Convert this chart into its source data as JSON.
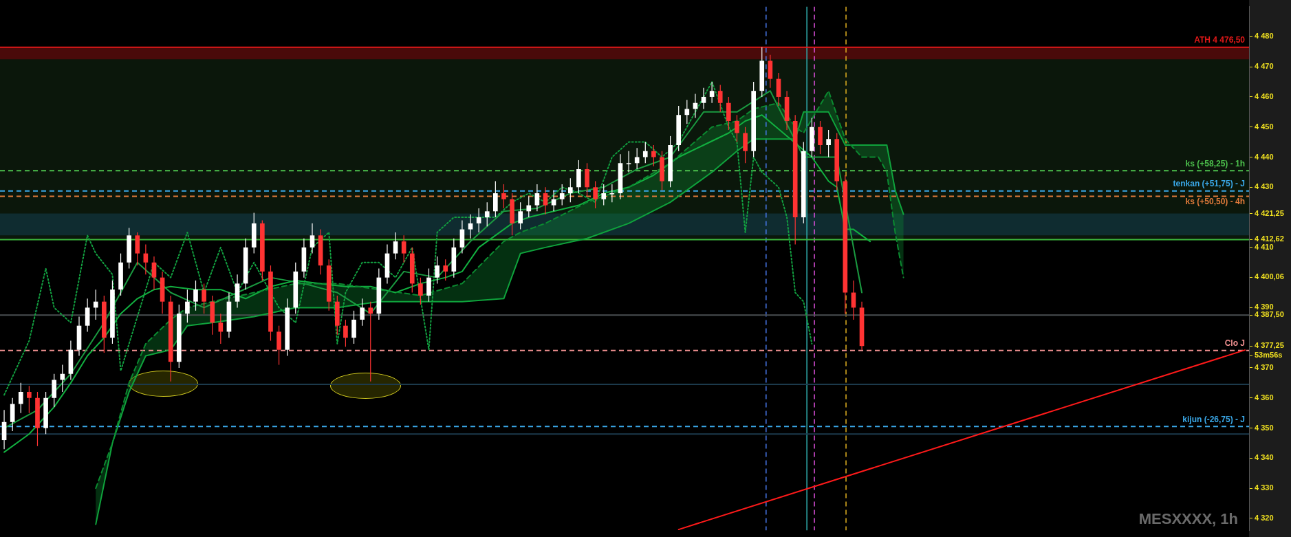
{
  "chart_data": {
    "type": "candlestick",
    "tick_labels": "y",
    "grid": false,
    "legend": false,
    "marker": "none",
    "categories": [
      null,
      null,
      null,
      null,
      null,
      null,
      null,
      null,
      null,
      null,
      null,
      null,
      null,
      null,
      null,
      null,
      null,
      null,
      null,
      null,
      null,
      null,
      null,
      null,
      null,
      null,
      null,
      null,
      null,
      null,
      null,
      null,
      null,
      null,
      null,
      null,
      null,
      null,
      null,
      null,
      null,
      null,
      null,
      null,
      null,
      null,
      null,
      null,
      null,
      null,
      null,
      null,
      null,
      null,
      null,
      null,
      null,
      null,
      null,
      null,
      null,
      null,
      null,
      null,
      null,
      null,
      null,
      null,
      null,
      null,
      null,
      null,
      null,
      null,
      null,
      null,
      null,
      null,
      null,
      null,
      null,
      null,
      null,
      null,
      null,
      null,
      null,
      null,
      null,
      null,
      null,
      null,
      null,
      null,
      null,
      null,
      null,
      null,
      null,
      null,
      null,
      null,
      null,
      null,
      null,
      null,
      null,
      null,
      null,
      null,
      null,
      null,
      null,
      null,
      null,
      null,
      null,
      null,
      null,
      null,
      null,
      null,
      null,
      null,
      null,
      null,
      null,
      null,
      null,
      null,
      null,
      null,
      null,
      null,
      null,
      null,
      null,
      null,
      null,
      null,
      null,
      null,
      null,
      null,
      null,
      null,
      null,
      null,
      null,
      null
    ],
    "ylim": [
      4316,
      4490
    ],
    "yticks": [
      {
        "value": 4320,
        "label": "4 320"
      },
      {
        "value": 4330,
        "label": "4 330"
      },
      {
        "value": 4340,
        "label": "4 340"
      },
      {
        "value": 4350,
        "label": "4 350"
      },
      {
        "value": 4360,
        "label": "4 360"
      },
      {
        "value": 4370,
        "label": "4 370"
      },
      {
        "value": 4374,
        "label": "53m56s"
      },
      {
        "value": 4377.25,
        "label": "4 377,25"
      },
      {
        "value": 4387.5,
        "label": "4 387,50"
      },
      {
        "value": 4390,
        "label": "4 390"
      },
      {
        "value": 4400.06,
        "label": "4 400,06"
      },
      {
        "value": 4410,
        "label": "4 410"
      },
      {
        "value": 4412.62,
        "label": "4 412,62"
      },
      {
        "value": 4421.25,
        "label": "4 421,25"
      },
      {
        "value": 4430,
        "label": "4 430"
      },
      {
        "value": 4440,
        "label": "4 440"
      },
      {
        "value": 4450,
        "label": "4 450"
      },
      {
        "value": 4460,
        "label": "4 460"
      },
      {
        "value": 4470,
        "label": "4 470"
      },
      {
        "value": 4480,
        "label": "4 480"
      }
    ],
    "series": [
      {
        "type": "line",
        "color": "#0b8a30",
        "line_style": "dashed",
        "values": [
          null,
          null,
          null,
          null,
          null,
          null,
          null,
          null,
          null,
          null,
          null,
          4330,
          null,
          4345,
          null,
          4365,
          null,
          4378,
          null,
          null,
          4386,
          null,
          4390,
          null,
          null,
          4392,
          null,
          null,
          null,
          null,
          4395,
          null,
          null,
          null,
          null,
          4398,
          null,
          null,
          null,
          null,
          4398,
          null,
          null,
          null,
          null,
          4396,
          null,
          null,
          null,
          null,
          4394,
          null,
          null,
          null,
          null,
          4398,
          null,
          null,
          null,
          null,
          4412,
          null,
          4415,
          null,
          null,
          4418,
          null,
          null,
          null,
          null,
          4425,
          null,
          null,
          null,
          null,
          4430,
          null,
          null,
          null,
          null,
          4438,
          null,
          null,
          null,
          null,
          4450,
          null,
          null,
          4452,
          null,
          4456,
          null,
          null,
          4458,
          null,
          4450,
          4448,
          null,
          null,
          4462,
          null,
          4446,
          null,
          4440,
          null,
          4440,
          4435,
          4415,
          4400,
          null,
          null,
          null,
          null,
          null,
          null,
          null,
          null,
          null,
          null,
          null,
          null,
          null,
          null,
          null,
          null,
          null,
          null,
          null,
          null,
          null,
          null,
          null,
          null,
          null,
          null,
          null,
          null,
          null,
          null,
          null,
          null,
          null,
          null,
          null,
          null,
          null,
          null,
          null,
          null,
          null
        ],
        "upper": [
          null,
          null,
          null,
          null,
          null,
          null,
          null,
          null,
          null,
          null,
          null,
          4330,
          null,
          4345,
          null,
          4365,
          null,
          4378,
          null,
          null,
          4386,
          null,
          4390,
          null,
          null,
          4392,
          null,
          null,
          null,
          null,
          4395,
          null,
          null,
          null,
          null,
          4398,
          null,
          null,
          null,
          null,
          4398,
          null,
          null,
          null,
          null,
          4396,
          null,
          null,
          null,
          null,
          4394,
          null,
          null,
          null,
          null,
          4398,
          null,
          null,
          null,
          null,
          4412,
          null,
          4415,
          null,
          null,
          4418,
          null,
          null,
          null,
          null,
          4425,
          null,
          null,
          null,
          null,
          4430,
          null,
          null,
          null,
          null,
          4438,
          null,
          null,
          null,
          null,
          4450,
          null,
          null,
          4452,
          null,
          4456,
          null,
          null,
          4458,
          null,
          4450,
          4448,
          null,
          null,
          4462,
          null,
          4446,
          null,
          4440,
          null,
          4440,
          4435,
          4415,
          4400,
          null,
          null,
          null,
          null,
          null,
          null,
          null,
          null,
          null,
          null,
          null,
          null,
          null,
          null,
          null,
          null,
          null,
          null,
          null,
          null,
          null,
          null,
          null,
          null,
          null,
          null,
          null,
          null,
          null,
          null,
          null,
          null,
          null,
          null,
          null,
          null,
          null,
          null,
          null,
          null,
          null
        ],
        "lower": [
          null,
          null,
          null,
          null,
          null,
          null,
          null,
          null,
          null,
          null,
          null,
          4318,
          null,
          4345,
          null,
          4362,
          null,
          4374,
          null,
          null,
          4376,
          null,
          4384,
          null,
          null,
          4385,
          null,
          null,
          null,
          null,
          4387,
          null,
          null,
          null,
          null,
          4390,
          null,
          null,
          null,
          null,
          4390,
          null,
          null,
          null,
          null,
          4392,
          null,
          null,
          null,
          null,
          4392,
          null,
          null,
          null,
          null,
          4392,
          null,
          null,
          null,
          null,
          4393,
          null,
          4408,
          null,
          null,
          4410,
          null,
          null,
          null,
          null,
          4413,
          null,
          null,
          null,
          null,
          4418,
          null,
          null,
          null,
          null,
          4425,
          null,
          null,
          null,
          null,
          4435,
          null,
          null,
          4442,
          null,
          4446,
          null,
          null,
          4446,
          null,
          4446,
          4455,
          null,
          null,
          4455,
          null,
          4444,
          null,
          4444,
          null,
          4444,
          4444,
          4429,
          4421,
          null,
          null,
          null,
          null,
          null,
          null,
          null,
          null,
          null,
          null,
          null,
          null,
          null,
          null,
          null,
          null,
          null,
          null,
          null,
          null,
          null,
          null,
          null,
          null,
          null,
          null,
          null,
          null,
          null,
          null,
          null,
          null,
          null,
          null,
          null,
          null,
          null,
          null,
          null,
          null,
          null
        ]
      },
      {
        "type": "line",
        "color": "#0fa33c",
        "values": [
          null,
          null,
          null,
          null,
          null,
          null,
          null,
          null,
          null,
          null,
          null,
          4318,
          null,
          4345,
          null,
          4362,
          null,
          4374,
          null,
          null,
          4376,
          null,
          4384,
          null,
          null,
          4385,
          null,
          null,
          null,
          null,
          4387,
          null,
          null,
          null,
          null,
          4390,
          null,
          null,
          null,
          null,
          4390,
          null,
          null,
          null,
          null,
          4392,
          null,
          null,
          null,
          null,
          4392,
          null,
          null,
          null,
          null,
          4392,
          null,
          null,
          null,
          null,
          4393,
          null,
          4408,
          null,
          null,
          4410,
          null,
          null,
          null,
          null,
          4413,
          null,
          null,
          null,
          null,
          4418,
          null,
          null,
          null,
          null,
          4425,
          null,
          null,
          null,
          null,
          4435,
          null,
          null,
          4442,
          null,
          4446,
          null,
          null,
          4446,
          null,
          4446,
          4455,
          null,
          null,
          4455,
          null,
          4444,
          null,
          4444,
          null,
          4444,
          4444,
          4429,
          4421,
          null,
          null,
          null,
          null,
          null,
          null,
          null,
          null,
          null,
          null,
          null,
          null,
          null,
          null,
          null,
          null,
          null,
          null,
          null,
          null,
          null,
          null,
          null,
          null,
          null,
          null,
          null,
          null,
          null,
          null,
          null,
          null,
          null,
          null,
          null,
          null,
          null,
          null,
          null,
          null,
          null
        ]
      },
      {
        "type": "line",
        "color": "#12b040",
        "values": [
          4342,
          null,
          null,
          4348,
          null,
          null,
          4357,
          null,
          4365,
          null,
          4374,
          null,
          4380,
          null,
          4388,
          null,
          4393,
          null,
          4396,
          null,
          4397,
          null,
          null,
          4396,
          null,
          null,
          4396,
          null,
          null,
          4393,
          null,
          null,
          4397,
          null,
          null,
          4399,
          null,
          null,
          4398,
          null,
          null,
          4397,
          null,
          null,
          4397,
          null,
          null,
          4395,
          null,
          null,
          4398,
          null,
          null,
          4400,
          null,
          4402,
          null,
          4410,
          null,
          4414,
          null,
          4418,
          null,
          4420,
          null,
          null,
          4422,
          null,
          null,
          4424,
          null,
          null,
          4428,
          null,
          null,
          4430,
          null,
          null,
          4434,
          null,
          null,
          4440,
          null,
          null,
          4444,
          null,
          null,
          4448,
          null,
          4452,
          null,
          4454,
          null,
          null,
          null,
          null,
          null,
          4440,
          null,
          4432,
          4430,
          4416,
          4416,
          null,
          4412,
          null,
          null,
          null,
          null,
          null,
          null,
          null,
          null,
          null,
          null,
          null,
          null,
          null,
          null,
          null,
          null,
          null,
          null,
          null,
          null,
          null,
          null,
          null,
          null,
          null,
          null,
          null,
          null,
          null,
          null,
          null,
          null,
          null,
          null,
          null,
          null,
          null,
          null,
          null,
          null,
          null,
          null,
          null,
          null,
          null
        ]
      },
      {
        "type": "line",
        "color": "#1a9a40",
        "values": [
          4350,
          null,
          null,
          null,
          4356,
          null,
          null,
          null,
          4368,
          null,
          null,
          null,
          4385,
          null,
          null,
          null,
          4405,
          null,
          null,
          null,
          4395,
          null,
          null,
          null,
          4390,
          null,
          null,
          null,
          4395,
          null,
          null,
          null,
          4400,
          null,
          null,
          null,
          4398,
          null,
          null,
          null,
          4395,
          null,
          null,
          null,
          4388,
          null,
          null,
          null,
          4402,
          null,
          null,
          null,
          4400,
          null,
          null,
          null,
          4412,
          null,
          null,
          null,
          4422,
          null,
          null,
          null,
          4423,
          null,
          null,
          null,
          4428,
          null,
          null,
          null,
          4430,
          null,
          null,
          null,
          4436,
          null,
          null,
          null,
          4440,
          null,
          null,
          null,
          4455,
          null,
          null,
          null,
          4455,
          null,
          null,
          null,
          4462,
          null,
          null,
          null,
          4440,
          null,
          null,
          null,
          4440,
          null,
          null,
          4395,
          null,
          null,
          null,
          null,
          null,
          null,
          null,
          null,
          null,
          null,
          null,
          null,
          null,
          null,
          null,
          null,
          null,
          null,
          null,
          null,
          null,
          null,
          null,
          null,
          null,
          null,
          null,
          null,
          null,
          null,
          null,
          null,
          null,
          null,
          null,
          null,
          null,
          null,
          null,
          null,
          null,
          null,
          null,
          null,
          null,
          null
        ]
      },
      {
        "type": "line",
        "color": "#12a040",
        "line_style": "dotted",
        "values": [
          4361,
          null,
          null,
          4379,
          null,
          4403,
          4390,
          null,
          4385,
          null,
          4414,
          4408,
          null,
          4401,
          4369,
          null,
          4387,
          null,
          4405,
          null,
          4400,
          null,
          4415,
          null,
          4395,
          null,
          4410,
          null,
          4395,
          null,
          4405,
          null,
          null,
          4390,
          null,
          4385,
          null,
          4410,
          null,
          4415,
          4378,
          4395,
          null,
          4405,
          null,
          4405,
          null,
          4400,
          null,
          4410,
          null,
          4376,
          4415,
          null,
          4420,
          null,
          null,
          4420,
          null,
          4420,
          null,
          4425,
          null,
          4428,
          null,
          4425,
          null,
          4430,
          null,
          4428,
          null,
          4425,
          null,
          4440,
          null,
          4445,
          null,
          4445,
          null,
          4440,
          null,
          4445,
          null,
          4455,
          null,
          4465,
          null,
          4450,
          4445,
          4415,
          4440,
          4435,
          null,
          4430,
          4420,
          4395,
          4392,
          4378,
          null,
          null,
          null,
          null,
          null,
          null,
          null,
          null,
          null,
          null,
          null,
          null,
          null,
          null,
          null,
          null,
          null,
          null,
          null,
          null,
          null,
          null,
          null,
          null,
          null,
          null,
          null,
          null,
          null,
          null,
          null,
          null,
          null,
          null,
          null,
          null,
          null,
          null,
          null,
          null,
          null,
          null,
          null,
          null,
          null,
          null,
          null,
          null,
          null,
          null,
          null,
          null
        ]
      },
      {
        "type": "line",
        "color": "#ff1a1a",
        "values": [
          null,
          null,
          null,
          null,
          null,
          null,
          null,
          null,
          null,
          null,
          null,
          null,
          null,
          null,
          null,
          null,
          null,
          null,
          null,
          null,
          null,
          null,
          null,
          null,
          null,
          null,
          null,
          null,
          null,
          null,
          null,
          null,
          null,
          null,
          null,
          null,
          null,
          null,
          null,
          null,
          null,
          null,
          null,
          null,
          null,
          null,
          null,
          null,
          null,
          null,
          null,
          null,
          null,
          null,
          null,
          null,
          null,
          null,
          null,
          null,
          null,
          null,
          null,
          null,
          null,
          null,
          null,
          null,
          null,
          null,
          null,
          null,
          null,
          null,
          null,
          null,
          null,
          null,
          null,
          null,
          null,
          4316.3,
          null,
          null,
          null,
          null,
          null,
          null,
          null,
          null,
          null,
          null,
          null,
          null,
          null,
          null,
          null,
          null,
          null,
          null,
          null,
          null,
          null,
          null,
          null,
          null,
          null,
          null,
          null,
          null,
          null,
          null,
          null,
          null,
          null,
          null,
          null,
          null,
          null,
          null,
          null,
          null,
          null,
          null,
          null,
          null,
          null,
          null,
          null,
          null,
          null,
          null,
          null,
          null,
          null,
          null,
          null,
          null,
          null,
          null,
          null,
          null,
          null,
          null,
          null,
          null,
          null,
          null,
          null,
          4375.9
        ]
      },
      {
        "type": "candlestick",
        "color": "#ffffff",
        "ohlc": [
          [
            4346,
            4356,
            4343,
            4352
          ],
          [
            4352,
            4360,
            4349,
            4358
          ],
          [
            4358,
            4365,
            4355,
            4362
          ],
          null,
          null,
          [
            4350,
            4362,
            4348,
            4360
          ],
          [
            4360,
            4368,
            4357,
            4366
          ],
          [
            4366,
            4371,
            4362,
            4368
          ],
          [
            4368,
            4379,
            4366,
            4376
          ],
          [
            4376,
            4387,
            4374,
            4384
          ],
          [
            4384,
            4393,
            4382,
            4390
          ],
          [
            4390,
            4396,
            4386,
            4392
          ],
          null,
          [
            4380,
            4399,
            4378,
            4396
          ],
          [
            4396,
            4408,
            4394,
            4405
          ],
          [
            4405,
            4416.5,
            4403,
            4414
          ],
          null,
          null,
          null,
          null,
          null,
          [
            4372,
            4391,
            4370,
            4388
          ],
          [
            4388,
            4396,
            4385,
            4392
          ],
          [
            4392,
            4399,
            4389,
            4396
          ],
          null,
          null,
          null,
          [
            4382,
            4395,
            4380,
            4392
          ],
          [
            4392,
            4401,
            4390,
            4398
          ],
          [
            4398,
            4413,
            4396,
            4410
          ],
          [
            4410,
            4421.5,
            4408,
            4418
          ],
          null,
          null,
          null,
          [
            4376,
            4393,
            4374,
            4390
          ],
          [
            4390,
            4405,
            4388,
            4402
          ],
          [
            4402,
            4413,
            4400,
            4410
          ],
          [
            4410,
            4418,
            4408,
            4414
          ],
          null,
          null,
          null,
          null,
          [
            4380,
            4389,
            4378,
            4386
          ],
          [
            4386,
            4393,
            4384,
            4390
          ],
          null,
          [
            4388,
            4403,
            4386,
            4400
          ],
          [
            4400,
            4411,
            4398,
            4408
          ],
          [
            4408,
            4415,
            4406,
            4412
          ],
          null,
          null,
          null,
          [
            4394,
            4403,
            4392,
            4400
          ],
          [
            4400,
            4407,
            4398,
            4404
          ],
          null,
          [
            4402,
            4413,
            4400,
            4410
          ],
          [
            4410,
            4419,
            4408,
            4416
          ],
          [
            4416,
            4421,
            4413,
            4418
          ],
          [
            4418,
            4423,
            4415,
            4420
          ],
          [
            4420,
            4425,
            4417,
            4422
          ],
          [
            4422,
            4432,
            4420,
            4428
          ],
          null,
          null,
          [
            4418,
            4425,
            4416,
            4422
          ],
          [
            4422,
            4427,
            4420,
            4424
          ],
          [
            4424,
            4431,
            4422,
            4428
          ],
          null,
          [
            4424,
            4429,
            4422,
            4426
          ],
          [
            4426,
            4431,
            4424,
            4428
          ],
          [
            4428,
            4433,
            4425,
            4430
          ],
          [
            4430,
            4439,
            4428,
            4436
          ],
          null,
          null,
          [
            4426,
            4431,
            4424,
            4428
          ],
          [
            4428,
            4431,
            4425,
            4428
          ],
          [
            4428,
            4441,
            4426,
            4438
          ],
          [
            4438,
            4442,
            4435,
            4438
          ],
          [
            4438,
            4443,
            4436,
            4440
          ],
          [
            4440,
            4445,
            4438,
            4442
          ],
          null,
          null,
          [
            4432,
            4447,
            4430,
            4444
          ],
          [
            4444,
            4457,
            4442,
            4454
          ],
          [
            4454,
            4459,
            4451,
            4456
          ],
          [
            4456,
            4461,
            4453,
            4458
          ],
          [
            4458,
            4463,
            4456,
            4460
          ],
          [
            4460,
            4465,
            4458,
            4462
          ],
          null,
          null,
          null,
          null,
          [
            4442,
            4465,
            4440,
            4462
          ],
          [
            4462,
            4476.5,
            4460,
            4472
          ],
          null,
          null,
          null,
          null,
          [
            4420,
            4445,
            4418,
            4442
          ],
          [
            4442,
            4453,
            4440,
            4450
          ],
          null,
          [
            4444,
            4449,
            4440,
            4446
          ],
          null,
          null,
          null,
          null,
          null,
          null,
          null,
          null,
          null,
          null,
          null,
          null,
          null,
          null,
          null,
          null,
          null,
          null,
          null,
          null,
          null,
          null,
          null,
          null,
          null,
          null,
          null,
          null,
          null,
          null,
          null,
          null,
          null,
          null,
          null,
          null,
          null,
          null,
          null,
          null,
          null,
          null,
          null,
          null,
          null,
          null,
          null,
          null,
          null,
          null
        ]
      },
      {
        "type": "candlestick",
        "color": "#ff3333",
        "ohlc": [
          null,
          null,
          null,
          [
            4362,
            4364,
            4355,
            4360
          ],
          [
            4360,
            4362,
            4344,
            4350
          ],
          null,
          null,
          null,
          null,
          null,
          null,
          null,
          [
            4392,
            4394,
            4375,
            4380
          ],
          null,
          null,
          null,
          [
            4414,
            4415,
            4404,
            4408
          ],
          [
            4408,
            4411,
            4401,
            4405
          ],
          [
            4405,
            4407,
            4396,
            4400
          ],
          [
            4400,
            4402,
            4388,
            4392
          ],
          [
            4392,
            4394,
            4365.5,
            4372
          ],
          null,
          null,
          null,
          [
            4396,
            4398,
            4388,
            4392
          ],
          [
            4392,
            4394,
            4381,
            4385
          ],
          [
            4385,
            4388,
            4378,
            4382
          ],
          null,
          null,
          null,
          null,
          [
            4418,
            4419,
            4399,
            4402
          ],
          [
            4402,
            4404,
            4379,
            4382
          ],
          [
            4382,
            4384,
            4371,
            4376
          ],
          null,
          null,
          null,
          null,
          [
            4414,
            4416,
            4401,
            4404
          ],
          [
            4404,
            4406,
            4389,
            4392
          ],
          [
            4392,
            4394,
            4381,
            4384
          ],
          [
            4384,
            4386,
            4377,
            4380
          ],
          null,
          null,
          [
            4390,
            4392,
            4365.5,
            4388
          ],
          null,
          null,
          null,
          [
            4412,
            4414,
            4405,
            4408
          ],
          [
            4408,
            4410,
            4395,
            4398
          ],
          [
            4398,
            4400,
            4391,
            4394
          ],
          null,
          null,
          [
            4404,
            4406,
            4399,
            4402
          ],
          null,
          null,
          null,
          null,
          null,
          null,
          [
            4428,
            4431,
            4423,
            4426
          ],
          [
            4426,
            4428,
            4414,
            4418
          ],
          null,
          null,
          null,
          [
            4428,
            4430,
            4421,
            4424
          ],
          null,
          null,
          null,
          null,
          [
            4436,
            4438,
            4427,
            4430
          ],
          [
            4430,
            4432,
            4423,
            4426
          ],
          null,
          null,
          null,
          null,
          null,
          null,
          [
            4442,
            4444,
            4437,
            4440
          ],
          [
            4440,
            4442,
            4429,
            4432
          ],
          null,
          null,
          null,
          null,
          null,
          null,
          [
            4462,
            4464,
            4455,
            4458
          ],
          [
            4458,
            4460,
            4449,
            4452
          ],
          [
            4452,
            4454,
            4445,
            4448
          ],
          [
            4448,
            4450,
            4438,
            4442
          ],
          null,
          null,
          [
            4472,
            4474,
            4463,
            4466
          ],
          [
            4466,
            4468,
            4457,
            4460
          ],
          [
            4460,
            4462,
            4449,
            4452
          ],
          [
            4452,
            4454,
            4411,
            4420
          ],
          null,
          null,
          [
            4450,
            4452,
            4441,
            4444
          ],
          null,
          [
            4446,
            4448,
            4429,
            4432
          ],
          [
            4432,
            4434,
            4388,
            4395
          ],
          [
            4395,
            4399,
            4386,
            4390
          ],
          [
            4390,
            4392,
            4376,
            4377.25
          ],
          null,
          null,
          null,
          null,
          null,
          null,
          null,
          null,
          null,
          null,
          null,
          null,
          null,
          null,
          null,
          null,
          null,
          null,
          null,
          null,
          null,
          null,
          null,
          null,
          null,
          null,
          null,
          null,
          null,
          null,
          null,
          null,
          null,
          null,
          null,
          null,
          null,
          null,
          null,
          null,
          null,
          null,
          null,
          null,
          null,
          null
        ]
      }
    ],
    "bands": [
      {
        "axis": "y",
        "from": 4412.62,
        "to": 4473.5,
        "color": "#0b170b"
      },
      {
        "axis": "y",
        "from": 4472.5,
        "to": 4476.5,
        "color": "#4a0a0a"
      },
      {
        "axis": "y",
        "from": 4414,
        "to": 4421.25,
        "color": "#0f2c30"
      }
    ],
    "ref_lines": [
      {
        "axis": "y",
        "value": 4476.5,
        "label": "ATH 4 476,50",
        "color": "#e01818"
      },
      {
        "axis": "y",
        "value": 4435.5,
        "label": "ks (+58,25) - 1h",
        "color": "#4cc04c",
        "line_style": "dashed"
      },
      {
        "axis": "y",
        "value": 4428.75,
        "label": "tenkan (+51,75) - J",
        "color": "#3aa8e8",
        "line_style": "dashed"
      },
      {
        "axis": "y",
        "value": 4427,
        "label": "ks (+50,50) - 4h",
        "color": "#e07a3a",
        "line_style": "dashed"
      },
      {
        "axis": "y",
        "value": 4412.62,
        "color": "#3cb83c"
      },
      {
        "axis": "y",
        "value": 4387.5,
        "color": "#4a4f52"
      },
      {
        "axis": "y",
        "value": 4375.75,
        "label": "Clo J",
        "color": "#f09090",
        "line_style": "dashed"
      },
      {
        "axis": "y",
        "value": 4364.5,
        "color": "#1c3a4c"
      },
      {
        "axis": "y",
        "value": 4350.5,
        "label": "kijun (-26,75) - J",
        "color": "#3aa8e8",
        "line_style": "dashed"
      },
      {
        "axis": "y",
        "value": 4348,
        "color": "#1c3a4c"
      }
    ],
    "annotations": [
      "MESXXXX, 1h"
    ]
  }
}
